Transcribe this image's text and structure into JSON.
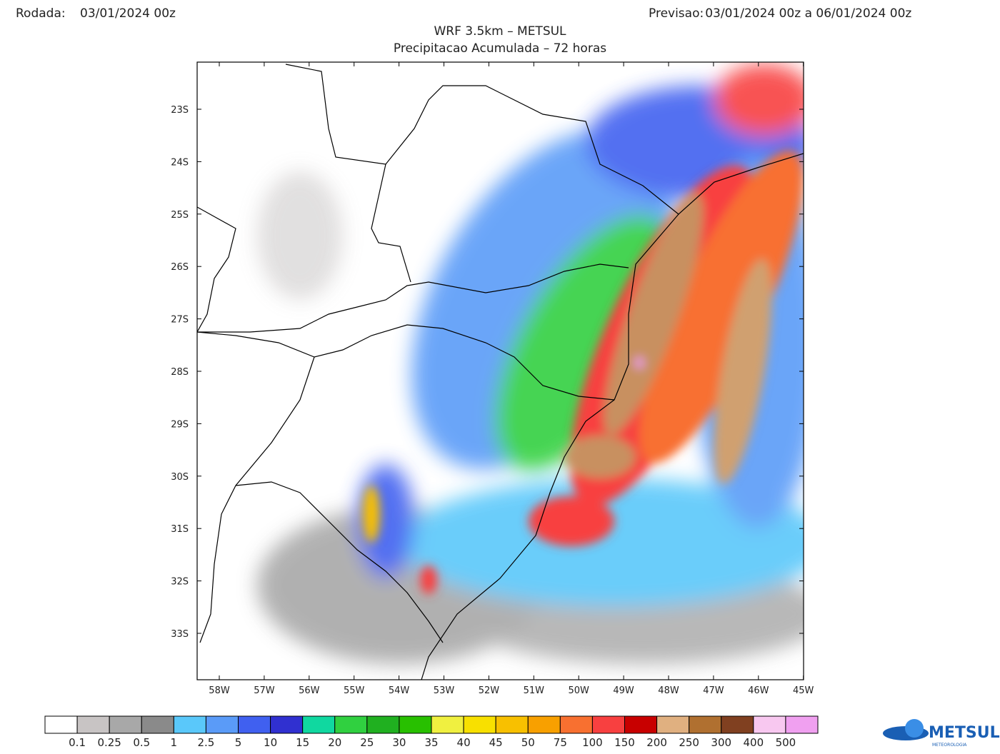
{
  "header": {
    "run_label": "Rodada:",
    "run_value": "03/01/2024 00z",
    "forecast_label": "Previsao:",
    "forecast_value": "03/01/2024 00z a 06/01/2024 00z"
  },
  "title": "WRF 3.5km – METSUL",
  "subtitle": "Precipitacao Acumulada – 72 horas",
  "map": {
    "lat_labels": [
      "23S",
      "24S",
      "25S",
      "26S",
      "27S",
      "28S",
      "29S",
      "30S",
      "31S",
      "32S",
      "33S"
    ],
    "lon_labels": [
      "58W",
      "57W",
      "56W",
      "55W",
      "54W",
      "53W",
      "52W",
      "51W",
      "50W",
      "49W",
      "48W",
      "47W",
      "46W",
      "45W"
    ]
  },
  "colorbar": {
    "colors": [
      "#ffffff",
      "#c8c4c4",
      "#a8a8a8",
      "#8a8a8a",
      "#5ac8fa",
      "#5a9bf8",
      "#4060f0",
      "#3030d0",
      "#10d8a0",
      "#30d040",
      "#20b020",
      "#28c000",
      "#f0f040",
      "#f8e000",
      "#f8c000",
      "#f8a000",
      "#f87030",
      "#f84040",
      "#c80000",
      "#e0b080",
      "#b07030",
      "#804020",
      "#f8c8f0",
      "#f0a0f0",
      "#e040e0",
      "#900090"
    ],
    "labels": [
      "0.1",
      "0.25",
      "0.5",
      "1",
      "2.5",
      "5",
      "10",
      "15",
      "20",
      "25",
      "30",
      "35",
      "40",
      "45",
      "50",
      "75",
      "100",
      "150",
      "200",
      "250",
      "300",
      "400",
      "500"
    ]
  },
  "logo": {
    "name": "METSUL",
    "tagline": "METEOROLOGIA"
  }
}
